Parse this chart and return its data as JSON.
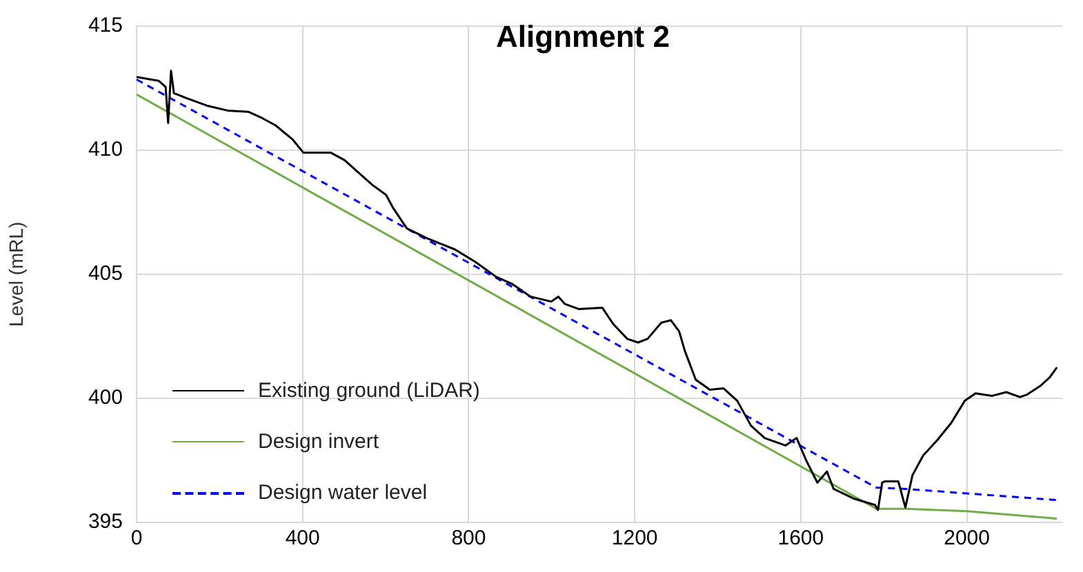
{
  "chart_data": {
    "type": "line",
    "title": "Alignment 2",
    "ylabel": "Level (mRL)",
    "xlim": [
      0,
      2230
    ],
    "xticks": [
      0,
      400,
      800,
      1200,
      1600,
      2000
    ],
    "ylim": [
      395,
      415
    ],
    "yticks": [
      395,
      400,
      405,
      410,
      415
    ],
    "grid": true,
    "legend": "bottom left",
    "marker": "none",
    "series": [
      {
        "name": "Existing ground (LiDAR)",
        "color": "#000000",
        "line_style": "solid",
        "x": [
          0,
          53,
          70,
          76,
          83,
          90,
          120,
          169,
          219,
          269,
          302,
          335,
          375,
          402,
          468,
          501,
          568,
          601,
          617,
          651,
          700,
          767,
          816,
          866,
          906,
          949,
          999,
          1016,
          1032,
          1065,
          1122,
          1148,
          1182,
          1208,
          1231,
          1264,
          1287,
          1307,
          1321,
          1347,
          1381,
          1414,
          1447,
          1480,
          1513,
          1563,
          1590,
          1613,
          1640,
          1663,
          1679,
          1729,
          1779,
          1786,
          1796,
          1802,
          1835,
          1852,
          1869,
          1895,
          1928,
          1962,
          1995,
          2021,
          2061,
          2095,
          2128,
          2145,
          2177,
          2200,
          2217
        ],
        "values": [
          412.95,
          412.8,
          412.55,
          411.1,
          413.2,
          412.3,
          412.1,
          411.8,
          411.6,
          411.55,
          411.3,
          411.0,
          410.45,
          409.9,
          409.9,
          409.6,
          408.6,
          408.2,
          407.7,
          406.85,
          406.45,
          406.0,
          405.5,
          404.9,
          404.6,
          404.1,
          403.9,
          404.1,
          403.8,
          403.6,
          403.65,
          403.0,
          402.4,
          402.25,
          402.4,
          403.05,
          403.15,
          402.7,
          401.9,
          400.75,
          400.35,
          400.4,
          399.9,
          398.9,
          398.4,
          398.1,
          398.4,
          397.5,
          396.6,
          397.05,
          396.35,
          395.95,
          395.7,
          395.5,
          396.6,
          396.65,
          396.65,
          395.6,
          396.9,
          397.7,
          398.3,
          399.0,
          399.9,
          400.2,
          400.1,
          400.25,
          400.05,
          400.15,
          400.5,
          400.85,
          401.25
        ]
      },
      {
        "name": "Design invert",
        "color": "#70ad47",
        "line_style": "solid",
        "x": [
          0,
          1782,
          1852,
          2000,
          2217
        ],
        "values": [
          412.25,
          395.55,
          395.55,
          395.45,
          395.15
        ]
      },
      {
        "name": "Design water level",
        "color": "#0000ff",
        "line_style": "dashed",
        "x": [
          0,
          1782,
          1852,
          2217
        ],
        "values": [
          412.85,
          396.4,
          396.35,
          395.9
        ]
      }
    ]
  }
}
